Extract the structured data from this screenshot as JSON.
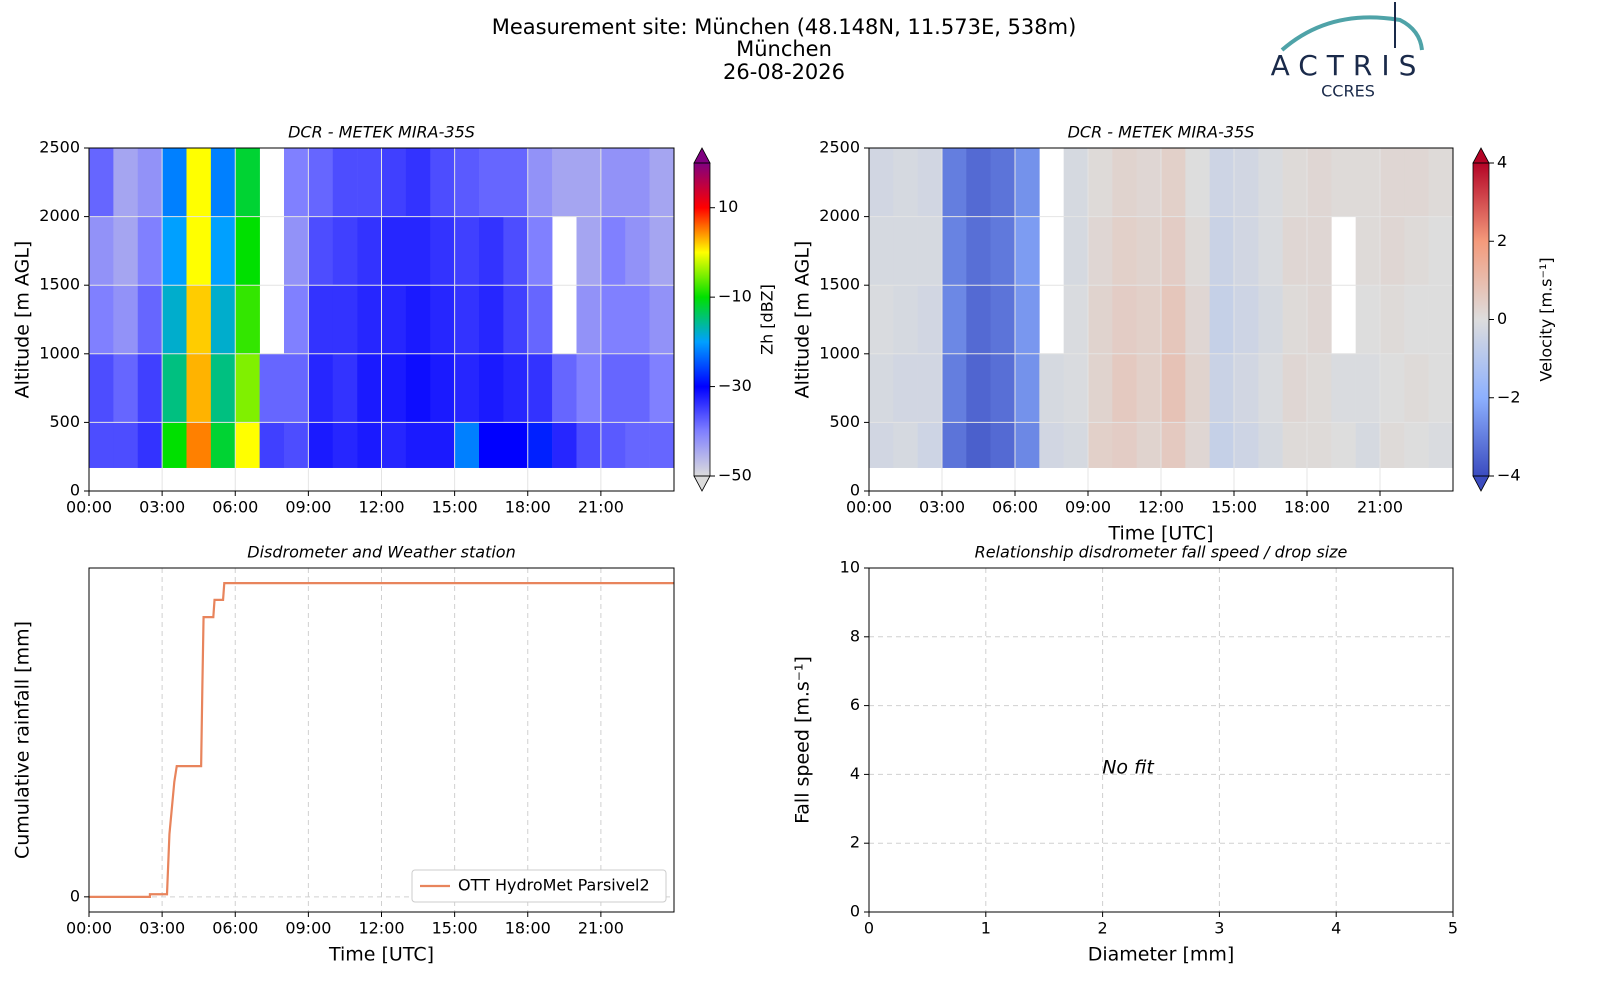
{
  "header": {
    "lines": [
      "Measurement site: München (48.148N, 11.573E, 538m)",
      "München",
      "26-08-2026"
    ]
  },
  "logo": {
    "name": "ACTRIS",
    "sub": "CCRES"
  },
  "chart_data": [
    {
      "type": "heatmap",
      "title": "DCR - METEK MIRA-35S",
      "ylabel": "Altitude [m AGL]",
      "grid": true,
      "x_bins": [
        0,
        1,
        2,
        3,
        4,
        5,
        6,
        7,
        8,
        9,
        10,
        11,
        12,
        13,
        14,
        15,
        16,
        17,
        18,
        19,
        20,
        21,
        22,
        23,
        24
      ],
      "y_bins": [
        170,
        500,
        1000,
        1500,
        2000,
        2500
      ],
      "z": [
        [
          -36,
          -36,
          -34,
          -10,
          5,
          -12,
          0,
          -35,
          -36,
          -32,
          -33,
          -32,
          -33,
          -32,
          -32,
          -22,
          -30,
          -30,
          -28,
          -33,
          -36,
          -37,
          -38,
          -38
        ],
        [
          -36,
          -38,
          -35,
          -15,
          3,
          -15,
          -5,
          -38,
          -38,
          -33,
          -34,
          -32,
          -32,
          -31,
          -32,
          -33,
          -32,
          -33,
          -34,
          -38,
          -40,
          -38,
          -38,
          -40
        ],
        [
          -40,
          -42,
          -38,
          -18,
          2,
          -18,
          -8,
          null,
          -40,
          -34,
          -34,
          -33,
          -33,
          -32,
          -33,
          -34,
          -33,
          -35,
          -38,
          null,
          -42,
          -40,
          -40,
          -42
        ],
        [
          -42,
          -44,
          -40,
          -20,
          0,
          -20,
          -10,
          null,
          -42,
          -36,
          -35,
          -34,
          -33,
          -33,
          -34,
          -35,
          -34,
          -36,
          -40,
          null,
          -44,
          -40,
          -42,
          -44
        ],
        [
          -38,
          -44,
          -42,
          -22,
          0,
          -22,
          -12,
          null,
          -40,
          -38,
          -36,
          -36,
          -35,
          -34,
          -36,
          -37,
          -38,
          -38,
          -42,
          -44,
          -44,
          -42,
          -42,
          -44
        ]
      ],
      "xlim": [
        0,
        24
      ],
      "xticks": [
        {
          "value": 0,
          "label": "00:00"
        },
        {
          "value": 3,
          "label": "03:00"
        },
        {
          "value": 6,
          "label": "06:00"
        },
        {
          "value": 9,
          "label": "09:00"
        },
        {
          "value": 12,
          "label": "12:00"
        },
        {
          "value": 15,
          "label": "15:00"
        },
        {
          "value": 18,
          "label": "18:00"
        },
        {
          "value": 21,
          "label": "21:00"
        }
      ],
      "ylim": [
        0,
        2500
      ],
      "yticks": [
        0,
        500,
        1000,
        1500,
        2000,
        2500
      ],
      "colorbar": {
        "label": "Zh [dBZ]",
        "lim": [
          -50,
          20
        ],
        "ticks": [
          {
            "value": -50,
            "label": "−50"
          },
          {
            "value": -30,
            "label": "−30"
          },
          {
            "value": -10,
            "label": "−10"
          },
          10
        ],
        "colors": [
          "#dcdcdc",
          "#8080ff",
          "#0000ff",
          "#00a0ff",
          "#00e000",
          "#ffff00",
          "#ff0000",
          "#800080"
        ]
      }
    },
    {
      "type": "heatmap",
      "title": "DCR - METEK MIRA-35S",
      "ylabel": "Altitude [m AGL]",
      "xlabel": "Time [UTC]",
      "grid": true,
      "x_bins": [
        0,
        1,
        2,
        3,
        4,
        5,
        6,
        7,
        8,
        9,
        10,
        11,
        12,
        13,
        14,
        15,
        16,
        17,
        18,
        19,
        20,
        21,
        22,
        23,
        24
      ],
      "y_bins": [
        170,
        500,
        1000,
        1500,
        2000,
        2500
      ],
      "z": [
        [
          -0.3,
          -0.2,
          -0.4,
          -3.2,
          -3.6,
          -3.4,
          -2.8,
          -0.3,
          -0.2,
          0.4,
          0.5,
          0.3,
          0.6,
          0.2,
          -0.6,
          -0.4,
          -0.2,
          0.1,
          0.1,
          0,
          -0.2,
          0.1,
          0,
          -0.1
        ],
        [
          -0.2,
          -0.3,
          -0.3,
          -3.0,
          -3.5,
          -3.3,
          -2.6,
          -0.2,
          -0.1,
          0.3,
          0.6,
          0.4,
          0.8,
          0.3,
          -0.5,
          -0.3,
          -0.1,
          0.2,
          0.1,
          -0.1,
          -0.1,
          0,
          0.1,
          0
        ],
        [
          -0.1,
          -0.2,
          -0.3,
          -2.8,
          -3.4,
          -3.2,
          -2.5,
          null,
          -0.1,
          0.3,
          0.5,
          0.4,
          0.7,
          0.2,
          -0.6,
          -0.4,
          -0.2,
          0.1,
          0.2,
          null,
          0,
          0.1,
          0,
          0
        ],
        [
          -0.2,
          -0.2,
          -0.2,
          -2.9,
          -3.3,
          -3.1,
          -2.4,
          null,
          -0.2,
          0.2,
          0.4,
          0.3,
          0.5,
          0.1,
          -0.5,
          -0.3,
          -0.1,
          0.2,
          0.2,
          null,
          0.1,
          0.2,
          0.1,
          0
        ],
        [
          -0.3,
          -0.2,
          -0.3,
          -3.0,
          -3.4,
          -3.2,
          -2.6,
          null,
          -0.2,
          0.1,
          0.3,
          0.2,
          0.4,
          0,
          -0.4,
          -0.3,
          -0.1,
          0.1,
          0.2,
          0.1,
          0.1,
          0.2,
          0.2,
          0.1
        ]
      ],
      "xlim": [
        0,
        24
      ],
      "xticks": [
        {
          "value": 0,
          "label": "00:00"
        },
        {
          "value": 3,
          "label": "03:00"
        },
        {
          "value": 6,
          "label": "06:00"
        },
        {
          "value": 9,
          "label": "09:00"
        },
        {
          "value": 12,
          "label": "12:00"
        },
        {
          "value": 15,
          "label": "15:00"
        },
        {
          "value": 18,
          "label": "18:00"
        },
        {
          "value": 21,
          "label": "21:00"
        }
      ],
      "ylim": [
        0,
        2500
      ],
      "yticks": [
        0,
        500,
        1000,
        1500,
        2000,
        2500
      ],
      "colorbar": {
        "label": "Velocity [m.s⁻¹]",
        "lim": [
          -4,
          4
        ],
        "ticks": [
          {
            "value": -4,
            "label": "−4"
          },
          {
            "value": -2,
            "label": "−2"
          },
          0,
          2,
          4
        ],
        "colors": [
          "#3b4cc0",
          "#8db0fe",
          "#dddddd",
          "#f49a7b",
          "#b40426"
        ]
      }
    },
    {
      "type": "line",
      "title": "Disdrometer and Weather station",
      "xlabel": "Time [UTC]",
      "ylabel": "Cumulative rainfall [mm]",
      "grid": true,
      "legend": "lower right",
      "x": [
        0,
        2.5,
        2.5,
        3.2,
        3.3,
        3.5,
        3.6,
        3.7,
        4.6,
        4.65,
        4.7,
        5.1,
        5.15,
        5.5,
        5.55,
        24
      ],
      "series": [
        {
          "name": "OTT HydroMet Parsivel2",
          "color": "#e8845c",
          "values": [
            0,
            0,
            0.05,
            0.05,
            1.2,
            2.2,
            2.5,
            2.5,
            2.5,
            4.0,
            5.35,
            5.35,
            5.68,
            5.68,
            6.0,
            6.0
          ]
        }
      ],
      "xlim": [
        0,
        24
      ],
      "xticks": [
        {
          "value": 0,
          "label": "00:00"
        },
        {
          "value": 3,
          "label": "03:00"
        },
        {
          "value": 6,
          "label": "06:00"
        },
        {
          "value": 9,
          "label": "09:00"
        },
        {
          "value": 12,
          "label": "12:00"
        },
        {
          "value": 15,
          "label": "15:00"
        },
        {
          "value": 18,
          "label": "18:00"
        },
        {
          "value": 21,
          "label": "21:00"
        }
      ],
      "ylim": [
        -0.29,
        6.29
      ],
      "yticks": [
        0
      ]
    },
    {
      "type": "scatter",
      "title": "Relationship disdrometer fall speed / drop size",
      "xlabel": "Diameter [mm]",
      "ylabel": "Fall speed [m.s⁻¹]",
      "grid": true,
      "annotation": "No fit",
      "xlim": [
        0,
        5
      ],
      "xticks": [
        0,
        1,
        2,
        3,
        4,
        5
      ],
      "ylim": [
        0,
        10
      ],
      "yticks": [
        0,
        2,
        4,
        6,
        8,
        10
      ]
    }
  ]
}
